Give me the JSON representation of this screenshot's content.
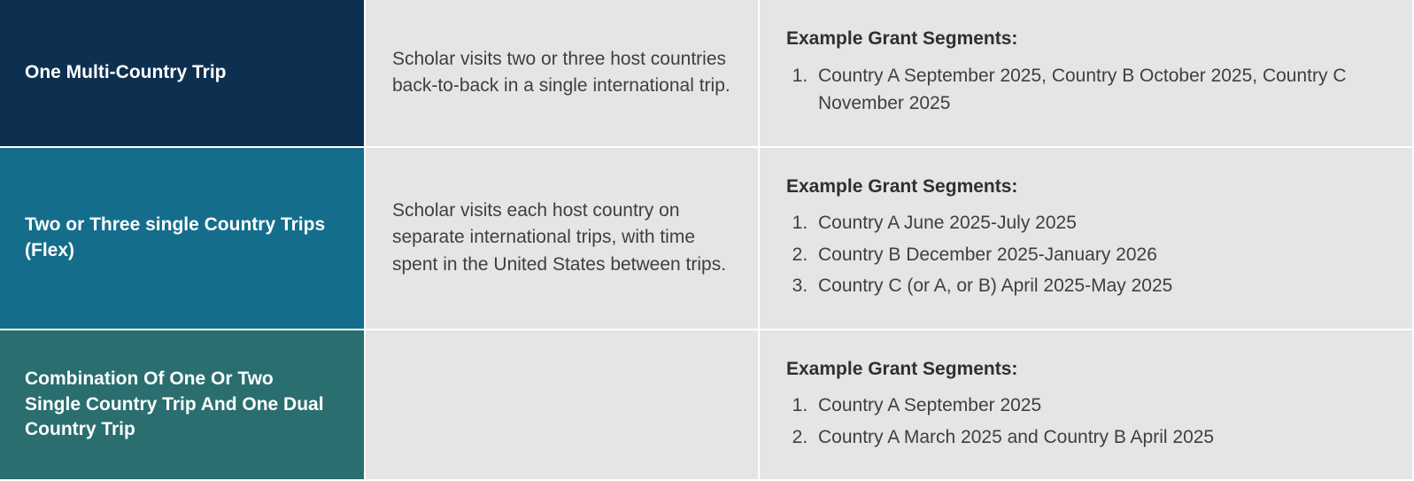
{
  "table": {
    "rows": [
      {
        "label": "One Multi-Country Trip",
        "label_bg": "#0e3050",
        "description": "Scholar visits two or three host countries back-to-back in a single international trip.",
        "example_heading": "Example Grant Segments:",
        "examples": [
          "Country A September 2025, Country B October 2025, Country C November 2025"
        ]
      },
      {
        "label": "Two or Three single Country Trips (Flex)",
        "label_bg": "#156d8c",
        "description": "Scholar visits each host country on separate international trips, with time spent in the United States between trips.",
        "example_heading": "Example Grant Segments:",
        "examples": [
          "Country A June 2025-July 2025",
          "Country B December 2025-January 2026",
          "Country C (or A, or B) April 2025-May 2025"
        ]
      },
      {
        "label": "Combination Of One Or Two Single Country Trip And One Dual Country Trip",
        "label_bg": "#2a6e6f",
        "description": "",
        "example_heading": "Example Grant Segments:",
        "examples": [
          "Country A September 2025",
          "Country A March 2025 and Country B April 2025"
        ]
      }
    ],
    "body_bg": "#e5e5e5",
    "text_color": "#3f3f3f",
    "heading_color": "#2f2f2f",
    "label_text_color": "#ffffff",
    "row_gap_color": "#ffffff",
    "font_size_pt": 16,
    "label_font_weight": 700
  }
}
